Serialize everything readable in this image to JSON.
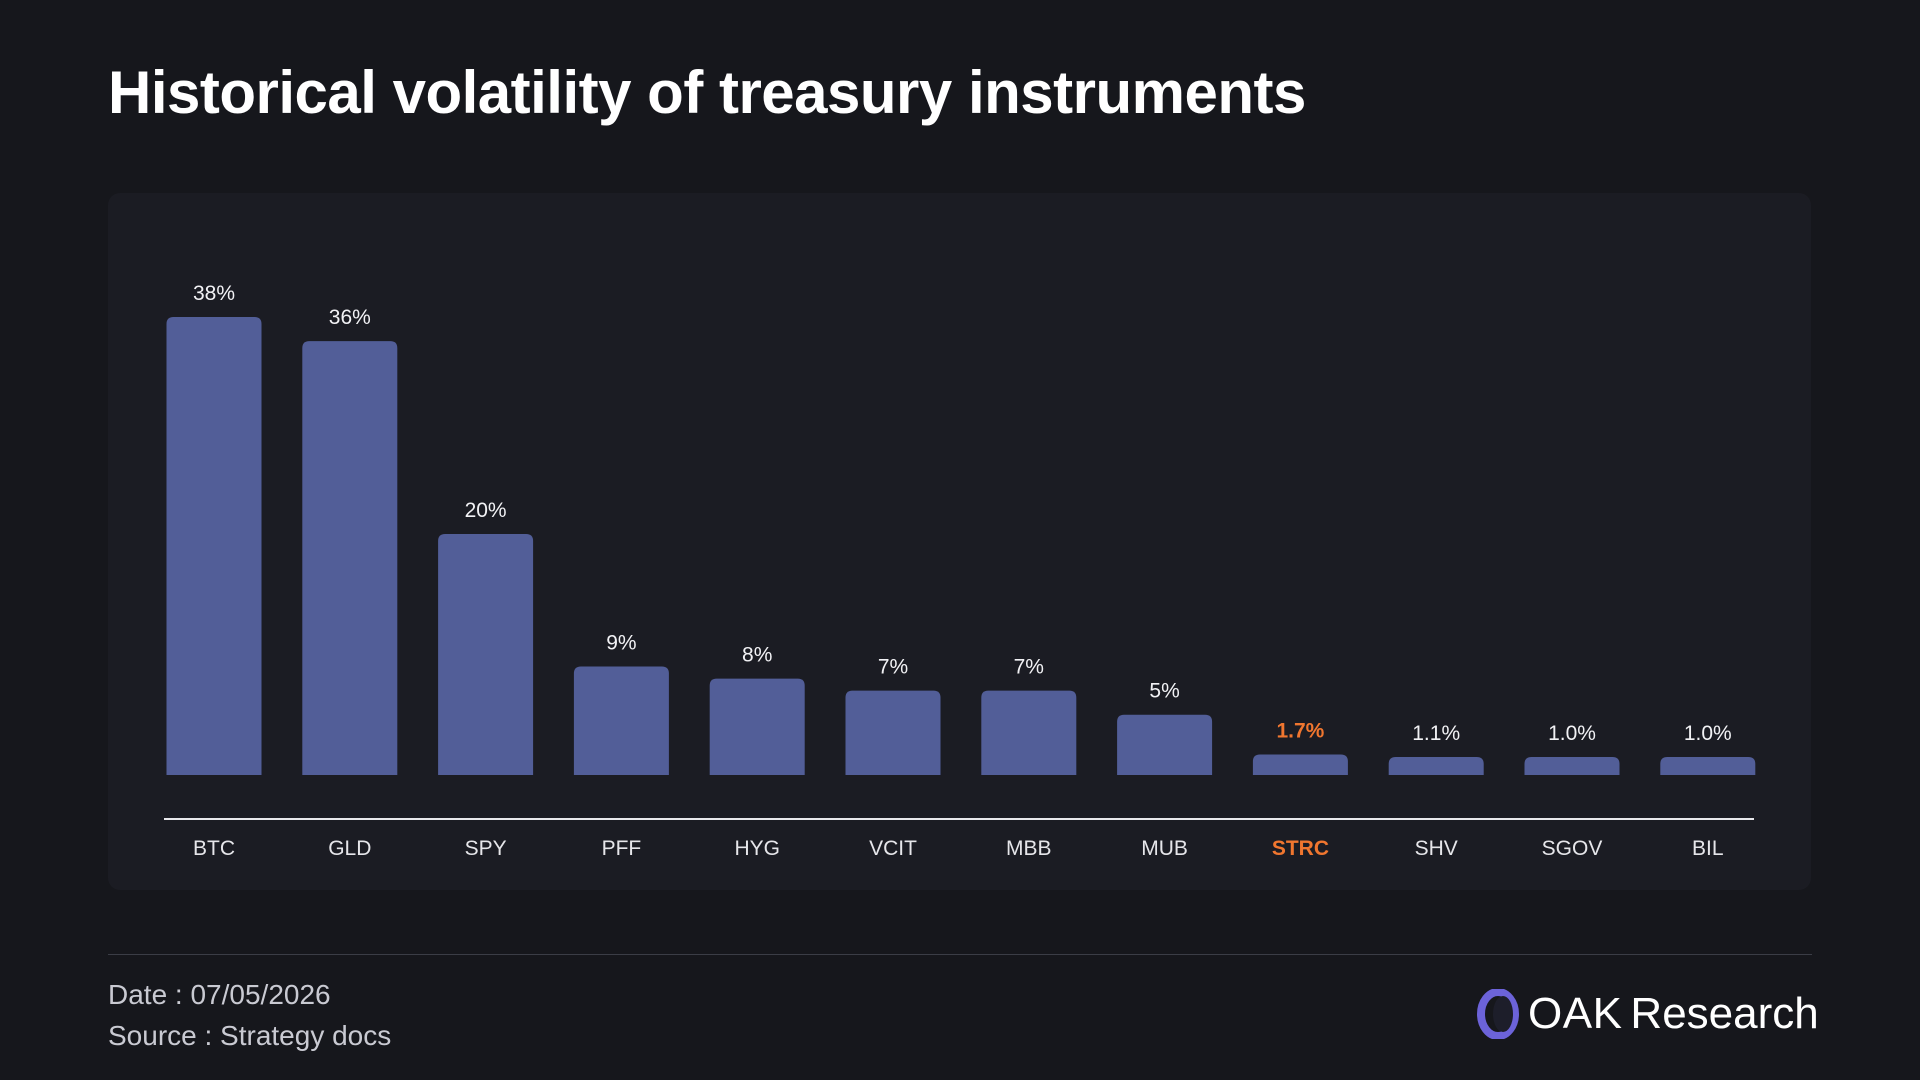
{
  "title": "Historical volatility of treasury instruments",
  "chart_data": {
    "type": "bar",
    "categories": [
      "BTC",
      "GLD",
      "SPY",
      "PFF",
      "HYG",
      "VCIT",
      "MBB",
      "MUB",
      "STRC",
      "SHV",
      "SGOV",
      "BIL"
    ],
    "values": [
      38,
      36,
      20,
      9,
      8,
      7,
      7,
      5,
      1.7,
      1.1,
      1.0,
      1.0
    ],
    "value_labels": [
      "38%",
      "36%",
      "20%",
      "9%",
      "8%",
      "7%",
      "7%",
      "5%",
      "1.7%",
      "1.1%",
      "1.0%",
      "1.0%"
    ],
    "highlight_category": "STRC",
    "title": "Historical volatility of treasury instruments",
    "xlabel": "",
    "ylabel": "",
    "ylim": [
      0,
      38
    ],
    "grid": false,
    "legend": "none",
    "colors": {
      "bar": "#525e98",
      "highlight": "#f0762f"
    }
  },
  "footer": {
    "date": "Date : 07/05/2026",
    "source": "Source : Strategy docs"
  },
  "brand": {
    "name_bold": "OAK",
    "name_light": "Research",
    "logo_icon": "oak-ring-icon",
    "accent": "#6c63d9"
  }
}
